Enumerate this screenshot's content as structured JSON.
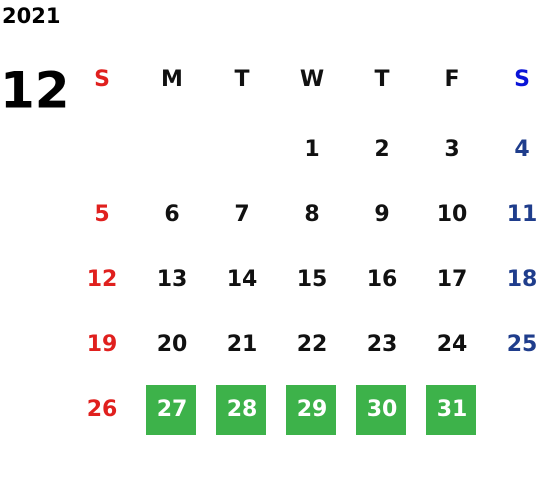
{
  "year": "2021",
  "month": "12",
  "weekdays": [
    "S",
    "M",
    "T",
    "W",
    "T",
    "F",
    "S"
  ],
  "weeks": [
    [
      null,
      null,
      null,
      "1",
      "2",
      "3",
      "4"
    ],
    [
      "5",
      "6",
      "7",
      "8",
      "9",
      "10",
      "11"
    ],
    [
      "12",
      "13",
      "14",
      "15",
      "16",
      "17",
      "18"
    ],
    [
      "19",
      "20",
      "21",
      "22",
      "23",
      "24",
      "25"
    ],
    [
      "26",
      {
        "day": "27",
        "highlight": true
      },
      {
        "day": "28",
        "highlight": true
      },
      {
        "day": "29",
        "highlight": true
      },
      {
        "day": "30",
        "highlight": true
      },
      {
        "day": "31",
        "highlight": true
      },
      null
    ]
  ],
  "colors": {
    "text": "#111111",
    "sunday": "#e0201e",
    "saturday_header": "#0a14d8",
    "saturday": "#1f3d8c",
    "highlight": "#3db24a",
    "highlight_text": "#ffffff"
  }
}
